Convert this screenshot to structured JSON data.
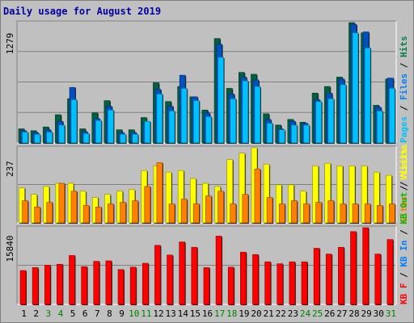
{
  "chart_data": [
    {
      "type": "bar",
      "title": "Daily usage for August 2019",
      "ymax_label": "1279",
      "legend": [
        {
          "name": "Hits",
          "color": "#008040"
        },
        {
          "name": "Files",
          "color": "#0080ff"
        },
        {
          "name": "Pages",
          "color": "#00c0ff"
        }
      ],
      "categories": [
        "1",
        "2",
        "3",
        "4",
        "5",
        "6",
        "7",
        "8",
        "9",
        "10",
        "11",
        "12",
        "13",
        "14",
        "15",
        "16",
        "17",
        "18",
        "19",
        "20",
        "21",
        "22",
        "23",
        "24",
        "25",
        "26",
        "27",
        "28",
        "29",
        "30",
        "31"
      ],
      "weekend_days": [
        "3",
        "4",
        "10",
        "11",
        "17",
        "18",
        "24",
        "25",
        "31"
      ],
      "ylim": [
        0,
        1279
      ],
      "series": [
        {
          "name": "Hits",
          "values": [
            150,
            130,
            170,
            300,
            470,
            150,
            320,
            450,
            140,
            140,
            270,
            640,
            440,
            600,
            490,
            350,
            1110,
            580,
            750,
            730,
            310,
            190,
            250,
            220,
            530,
            600,
            700,
            1279,
            1170,
            400,
            680
          ]
        },
        {
          "name": "Files",
          "values": [
            130,
            110,
            140,
            230,
            590,
            120,
            260,
            390,
            110,
            110,
            220,
            570,
            390,
            720,
            490,
            320,
            1050,
            520,
            700,
            670,
            250,
            150,
            230,
            210,
            460,
            530,
            680,
            1260,
            1180,
            380,
            690
          ]
        },
        {
          "name": "Pages",
          "values": [
            115,
            92,
            115,
            190,
            460,
            100,
            240,
            350,
            92,
            92,
            230,
            520,
            340,
            580,
            450,
            280,
            910,
            470,
            660,
            600,
            210,
            140,
            190,
            190,
            440,
            470,
            620,
            1170,
            1010,
            340,
            580
          ]
        }
      ]
    },
    {
      "type": "bar",
      "ymax_label": "237",
      "legend": [
        {
          "name": "Visits",
          "color": "#ffff00"
        },
        {
          "name": "Sites",
          "color": "#ff8000"
        }
      ],
      "ylim": [
        0,
        237
      ],
      "series": [
        {
          "name": "Visits",
          "values": [
            110,
            90,
            115,
            125,
            125,
            100,
            80,
            90,
            100,
            105,
            165,
            180,
            160,
            165,
            140,
            125,
            115,
            200,
            220,
            237,
            185,
            120,
            120,
            100,
            180,
            188,
            180,
            180,
            180,
            160,
            150
          ]
        },
        {
          "name": "Sites",
          "values": [
            70,
            50,
            65,
            125,
            100,
            55,
            50,
            60,
            65,
            70,
            115,
            190,
            60,
            75,
            60,
            85,
            100,
            60,
            90,
            170,
            80,
            60,
            70,
            60,
            65,
            70,
            60,
            60,
            60,
            55,
            60
          ]
        }
      ]
    },
    {
      "type": "bar",
      "ymax_label": "15840",
      "legend": [
        {
          "name": "Visits",
          "color": "#ffff00"
        },
        {
          "name": "KB Out",
          "color": "#00c000"
        },
        {
          "name": "KB In",
          "color": "#0080ff"
        },
        {
          "name": "KB F",
          "color": "#ff0000"
        }
      ],
      "ylim": [
        0,
        15840
      ],
      "series": [
        {
          "name": "KB F",
          "values": [
            7000,
            7600,
            8100,
            8300,
            10100,
            7800,
            8900,
            9000,
            7200,
            7700,
            8500,
            12200,
            10200,
            12900,
            11800,
            7600,
            14100,
            7700,
            10800,
            10300,
            8800,
            8400,
            8800,
            8800,
            11600,
            10400,
            11800,
            15040,
            15840,
            10400,
            13400
          ]
        }
      ]
    }
  ]
}
